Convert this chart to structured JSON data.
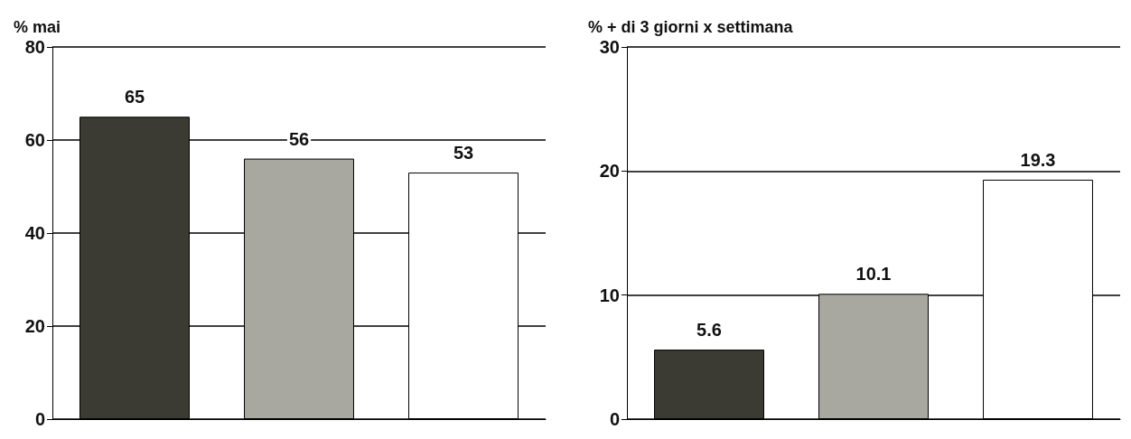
{
  "chart_data": [
    {
      "type": "bar",
      "title": "% mai",
      "categories": [
        null,
        null,
        null
      ],
      "values": [
        65,
        56,
        53
      ],
      "colors": [
        "#3b3b33",
        "#a8a8a0",
        "#ffffff"
      ],
      "ylim": [
        0,
        80
      ],
      "yticks": [
        0,
        20,
        40,
        60,
        80
      ],
      "grid": "y",
      "data_labels": true
    },
    {
      "type": "bar",
      "title": "% + di 3 giorni x settimana",
      "categories": [
        null,
        null,
        null
      ],
      "values": [
        5.6,
        10.1,
        19.3
      ],
      "colors": [
        "#3b3b33",
        "#a8a8a0",
        "#ffffff"
      ],
      "ylim": [
        0,
        30
      ],
      "yticks": [
        0,
        10,
        20,
        30
      ],
      "grid": "y",
      "data_labels": true
    }
  ]
}
